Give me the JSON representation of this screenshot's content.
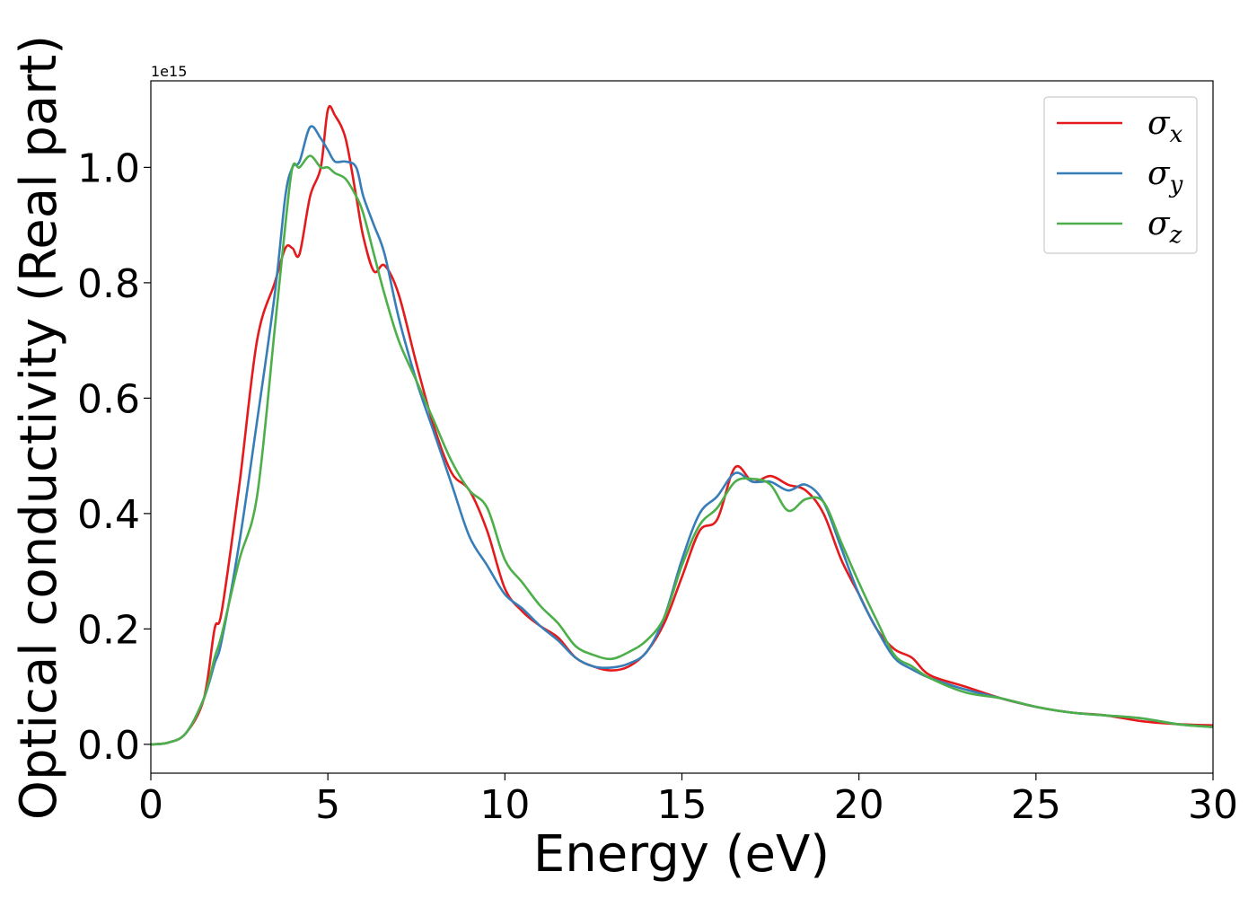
{
  "chart_data": {
    "type": "line",
    "title": "",
    "xlabel": "Energy (eV)",
    "ylabel": "Optical conductivity (Real part)",
    "y_offset_label": "1e15",
    "xlim": [
      0,
      30
    ],
    "ylim": [
      -0.05,
      1.15
    ],
    "xticks": [
      0,
      5,
      10,
      15,
      20,
      25,
      30
    ],
    "xtick_labels": [
      "0",
      "5",
      "10",
      "15",
      "20",
      "25",
      "30"
    ],
    "yticks": [
      0.0,
      0.2,
      0.4,
      0.6,
      0.8,
      1.0
    ],
    "ytick_labels": [
      "0.0",
      "0.2",
      "0.4",
      "0.6",
      "0.8",
      "1.0"
    ],
    "grid": false,
    "legend_position": "top-right",
    "x": [
      0,
      0.5,
      1.0,
      1.5,
      1.8,
      2.0,
      2.5,
      3.0,
      3.5,
      3.8,
      4.0,
      4.2,
      4.5,
      4.8,
      5.0,
      5.2,
      5.5,
      5.8,
      6.0,
      6.3,
      6.6,
      7.0,
      7.5,
      8.0,
      8.5,
      9.0,
      9.5,
      10.0,
      10.5,
      11.0,
      11.5,
      12.0,
      12.5,
      13.0,
      13.5,
      14.0,
      14.5,
      15.0,
      15.5,
      16.0,
      16.5,
      17.0,
      17.5,
      18.0,
      18.5,
      19.0,
      19.5,
      20.0,
      20.5,
      21.0,
      21.5,
      22.0,
      23.0,
      24.0,
      25.0,
      26.0,
      27.0,
      28.0,
      29.0,
      30.0
    ],
    "series": [
      {
        "name": "σ",
        "sub": "x",
        "color": "#e41a1c",
        "values": [
          0.0,
          0.003,
          0.02,
          0.08,
          0.2,
          0.23,
          0.45,
          0.7,
          0.8,
          0.86,
          0.86,
          0.85,
          0.95,
          1.0,
          1.1,
          1.09,
          1.05,
          0.95,
          0.88,
          0.82,
          0.83,
          0.78,
          0.66,
          0.55,
          0.47,
          0.44,
          0.37,
          0.27,
          0.23,
          0.205,
          0.185,
          0.15,
          0.135,
          0.128,
          0.135,
          0.16,
          0.21,
          0.29,
          0.37,
          0.39,
          0.48,
          0.455,
          0.465,
          0.45,
          0.44,
          0.4,
          0.32,
          0.26,
          0.2,
          0.165,
          0.15,
          0.12,
          0.1,
          0.08,
          0.065,
          0.055,
          0.05,
          0.04,
          0.035,
          0.033
        ]
      },
      {
        "name": "σ",
        "sub": "y",
        "color": "#377eb8",
        "values": [
          0.0,
          0.003,
          0.02,
          0.08,
          0.14,
          0.18,
          0.35,
          0.56,
          0.78,
          0.95,
          1.0,
          1.01,
          1.07,
          1.05,
          1.03,
          1.01,
          1.01,
          1.0,
          0.95,
          0.9,
          0.85,
          0.74,
          0.63,
          0.54,
          0.45,
          0.36,
          0.31,
          0.26,
          0.235,
          0.205,
          0.18,
          0.15,
          0.135,
          0.133,
          0.14,
          0.16,
          0.22,
          0.32,
          0.4,
          0.43,
          0.47,
          0.455,
          0.455,
          0.44,
          0.45,
          0.42,
          0.34,
          0.26,
          0.2,
          0.15,
          0.13,
          0.115,
          0.095,
          0.08,
          0.065,
          0.055,
          0.05,
          0.045,
          0.035,
          0.03
        ]
      },
      {
        "name": "σ",
        "sub": "z",
        "color": "#4daf4a",
        "values": [
          0.0,
          0.003,
          0.02,
          0.08,
          0.15,
          0.19,
          0.32,
          0.43,
          0.72,
          0.9,
          1.0,
          1.0,
          1.02,
          1.0,
          1.0,
          0.99,
          0.98,
          0.95,
          0.92,
          0.85,
          0.78,
          0.7,
          0.63,
          0.56,
          0.49,
          0.44,
          0.41,
          0.32,
          0.28,
          0.24,
          0.21,
          0.17,
          0.155,
          0.148,
          0.16,
          0.18,
          0.22,
          0.31,
          0.38,
          0.41,
          0.455,
          0.46,
          0.45,
          0.405,
          0.425,
          0.42,
          0.35,
          0.28,
          0.215,
          0.155,
          0.135,
          0.115,
          0.09,
          0.08,
          0.065,
          0.055,
          0.05,
          0.045,
          0.035,
          0.03
        ]
      }
    ]
  }
}
